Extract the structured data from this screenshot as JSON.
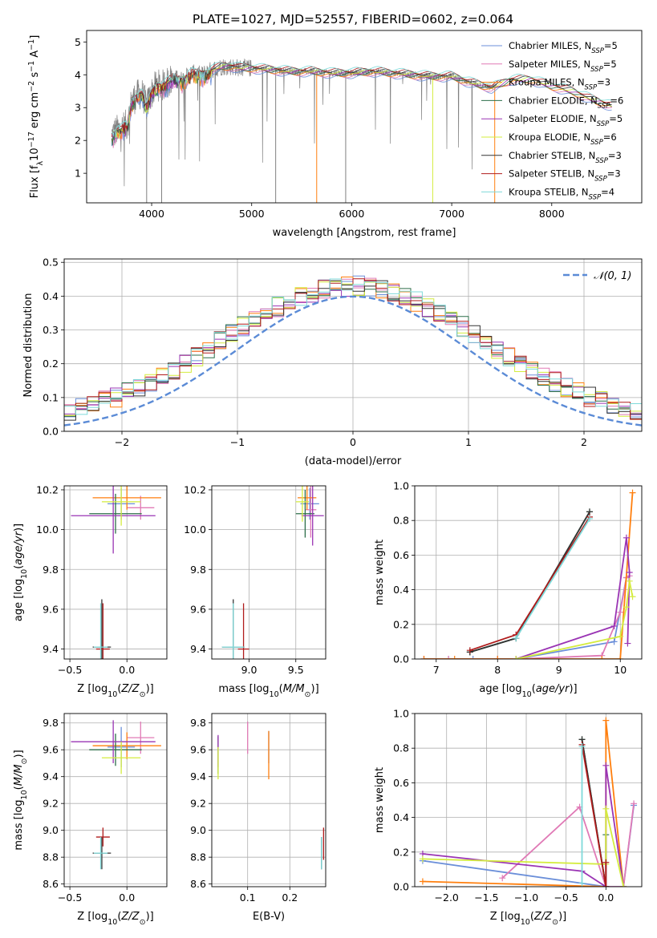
{
  "figure": {
    "title": "PLATE=1027, MJD=52557, FIBERID=0602, z=0.064"
  },
  "colors": {
    "data": "#808080",
    "grid": "#b0b0b0",
    "normal": "#5b8bd6",
    "models": [
      "#6b8fd9",
      "#e07ab6",
      "#ff7f0e",
      "#2c6e49",
      "#9a34b4",
      "#d4ec3e",
      "#333333",
      "#b01c1c",
      "#7fdada"
    ]
  },
  "models": [
    {
      "label": "Chabrier MILES, N",
      "sub": "SSP",
      "suffix": "=5"
    },
    {
      "label": "Salpeter MILES, N",
      "sub": "SSP",
      "suffix": "=5"
    },
    {
      "label": "Kroupa MILES, N",
      "sub": "SSP",
      "suffix": "=3"
    },
    {
      "label": "Chabrier ELODIE, N",
      "sub": "SSP",
      "suffix": "=6"
    },
    {
      "label": "Salpeter ELODIE, N",
      "sub": "SSP",
      "suffix": "=5"
    },
    {
      "label": "Kroupa ELODIE, N",
      "sub": "SSP",
      "suffix": "=6"
    },
    {
      "label": "Chabrier STELIB, N",
      "sub": "SSP",
      "suffix": "=3"
    },
    {
      "label": "Salpeter STELIB, N",
      "sub": "SSP",
      "suffix": "=3"
    },
    {
      "label": "Kroupa STELIB, N",
      "sub": "SSP",
      "suffix": "=4"
    }
  ],
  "chart_data": [
    {
      "id": "spectrum",
      "type": "line",
      "xlabel": "wavelength [Angstrom, rest frame]",
      "ylabel": "Flux [fλ10⁻¹⁷ erg cm⁻² s⁻¹ A⁻¹]",
      "xlim": [
        3350,
        8900
      ],
      "ylim": [
        0.1,
        5.35
      ],
      "xticks": [
        4000,
        5000,
        6000,
        7000,
        8000
      ],
      "yticks": [
        1,
        2,
        3,
        4,
        5
      ],
      "legend": "upper right",
      "continuum": {
        "x": [
          3600,
          3650,
          3700,
          3760,
          3800,
          3850,
          3900,
          3950,
          4000,
          4050,
          4100,
          4200,
          4300,
          4400,
          4500,
          4600,
          4700,
          4800,
          4900,
          5000,
          5200,
          5400,
          5600,
          5800,
          6000,
          6200,
          6400,
          6600,
          6800,
          7000,
          7200,
          7400,
          7600,
          7800,
          8000,
          8200,
          8400,
          8600
        ],
        "y": [
          2.15,
          2.3,
          2.35,
          2.5,
          3.2,
          3.35,
          3.45,
          3.05,
          3.45,
          3.7,
          3.65,
          3.9,
          3.85,
          4.05,
          4.0,
          4.15,
          4.25,
          4.25,
          4.2,
          4.2,
          4.15,
          4.1,
          4.1,
          4.05,
          4.05,
          4.1,
          4.05,
          4.0,
          3.95,
          3.95,
          3.75,
          3.6,
          3.85,
          3.85,
          3.65,
          3.5,
          3.25,
          3.05
        ]
      },
      "data_wavelength_range": [
        3600,
        7450
      ],
      "model_wavelength_range": [
        3600,
        8600
      ]
    },
    {
      "id": "residuals",
      "type": "bar",
      "xlabel": "(data-model)/error",
      "ylabel": "Normed distribution",
      "xlim": [
        -2.5,
        2.5
      ],
      "ylim": [
        0,
        0.51
      ],
      "xticks": [
        -2,
        -1,
        0,
        1,
        2
      ],
      "yticks": [
        0.0,
        0.1,
        0.2,
        0.3,
        0.4,
        0.5
      ],
      "legend": "upper right",
      "normal_label": "𝒩(0, 1)",
      "bin_width": 0.1,
      "note": "histograms of 9 models"
    },
    {
      "id": "age-vs-Z",
      "type": "scatter",
      "xlabel": "Z [log₁₀(Z/Z⊙)]",
      "ylabel": "age  [log₁₀(age/yr)]",
      "xlim": [
        -0.55,
        0.35
      ],
      "ylim": [
        9.35,
        10.22
      ],
      "xticks": [
        -0.5,
        0.0
      ],
      "xticklabels": [
        "−0.5",
        "0.0"
      ],
      "yticks": [
        9.4,
        9.6,
        9.8,
        10.0,
        10.2
      ],
      "points": [
        {
          "model": 0,
          "x": -0.05,
          "y": 10.13,
          "xerr": 0.12,
          "yerr": 0.08
        },
        {
          "model": 1,
          "x": 0.12,
          "y": 10.11,
          "xerr": 0.12,
          "yerr": 0.06
        },
        {
          "model": 2,
          "x": 0.0,
          "y": 10.16,
          "xerr": 0.3,
          "yerr": 0.06
        },
        {
          "model": 3,
          "x": -0.1,
          "y": 10.08,
          "xerr": 0.23,
          "yerr": 0.1
        },
        {
          "model": 4,
          "x": -0.12,
          "y": 10.07,
          "xerr": 0.37,
          "yerr": 0.19
        },
        {
          "model": 5,
          "x": -0.05,
          "y": 10.14,
          "xerr": 0.17,
          "yerr": 0.12
        },
        {
          "model": 6,
          "x": -0.22,
          "y": 9.41,
          "xerr": 0.08,
          "yerr": 0.24
        },
        {
          "model": 7,
          "x": -0.21,
          "y": 9.4,
          "xerr": 0.06,
          "yerr": 0.23
        },
        {
          "model": 8,
          "x": -0.23,
          "y": 9.41,
          "xerr": 0.06,
          "yerr": 0.22
        }
      ]
    },
    {
      "id": "age-vs-mass",
      "type": "scatter",
      "xlabel": "mass [log₁₀(M/M⊙)]",
      "xlim": [
        8.6,
        9.82
      ],
      "ylim": [
        9.35,
        10.22
      ],
      "xticks": [
        9.0,
        9.5
      ],
      "yticks": [
        9.4,
        9.6,
        9.8,
        10.0,
        10.2
      ],
      "points": [
        {
          "model": 0,
          "x": 9.65,
          "y": 10.13,
          "xerr": 0.1,
          "yerr": 0.08
        },
        {
          "model": 1,
          "x": 9.66,
          "y": 10.1,
          "xerr": 0.06,
          "yerr": 0.14
        },
        {
          "model": 2,
          "x": 9.62,
          "y": 10.16,
          "xerr": 0.1,
          "yerr": 0.06
        },
        {
          "model": 3,
          "x": 9.6,
          "y": 10.08,
          "xerr": 0.1,
          "yerr": 0.12
        },
        {
          "model": 4,
          "x": 9.68,
          "y": 10.07,
          "xerr": 0.12,
          "yerr": 0.15
        },
        {
          "model": 5,
          "x": 9.57,
          "y": 10.14,
          "xerr": 0.07,
          "yerr": 0.1
        },
        {
          "model": 6,
          "x": 8.83,
          "y": 9.41,
          "xerr": 0.12,
          "yerr": 0.24
        },
        {
          "model": 7,
          "x": 8.94,
          "y": 9.4,
          "xerr": 0.06,
          "yerr": 0.23
        },
        {
          "model": 8,
          "x": 8.83,
          "y": 9.41,
          "xerr": 0.12,
          "yerr": 0.22
        }
      ]
    },
    {
      "id": "weight-vs-age",
      "type": "line",
      "xlabel": "age  [log₁₀(age/yr)]",
      "ylabel": "mass weight",
      "xlim": [
        6.65,
        10.35
      ],
      "ylim": [
        0.0,
        1.0
      ],
      "xticks": [
        7,
        8,
        9,
        10
      ],
      "yticks": [
        0.0,
        0.2,
        0.4,
        0.6,
        0.8,
        1.0
      ],
      "series": [
        {
          "model": 0,
          "x": [
            6.8,
            7.2,
            7.6,
            8.0,
            8.3,
            9.9,
            10.1
          ],
          "y": [
            0.0,
            0.0,
            0.0,
            0.0,
            0.0,
            0.1,
            0.47
          ]
        },
        {
          "model": 1,
          "x": [
            6.8,
            7.2,
            8.0,
            8.3,
            9.7,
            10.0,
            10.1,
            10.15
          ],
          "y": [
            0.0,
            0.0,
            0.0,
            0.0,
            0.02,
            0.27,
            0.47,
            0.48
          ]
        },
        {
          "model": 2,
          "x": [
            6.8,
            7.3,
            8.0,
            9.7,
            10.0,
            10.2
          ],
          "y": [
            0.0,
            0.0,
            0.0,
            0.0,
            0.0,
            0.96
          ]
        },
        {
          "model": 3,
          "x": [
            7.55,
            8.3,
            9.5
          ],
          "y": [
            0.04,
            0.12,
            0.85
          ]
        },
        {
          "model": 4,
          "x": [
            8.3,
            9.9,
            10.1,
            10.15,
            10.12
          ],
          "y": [
            0.0,
            0.19,
            0.7,
            0.5,
            0.09
          ]
        },
        {
          "model": 5,
          "x": [
            8.3,
            10.0,
            10.1,
            10.15,
            10.2
          ],
          "y": [
            0.0,
            0.13,
            0.3,
            0.45,
            0.36
          ]
        },
        {
          "model": 6,
          "x": [
            7.55,
            8.3,
            9.5
          ],
          "y": [
            0.04,
            0.12,
            0.85
          ]
        },
        {
          "model": 7,
          "x": [
            7.55,
            8.3,
            9.5
          ],
          "y": [
            0.05,
            0.14,
            0.82
          ]
        },
        {
          "model": 8,
          "x": [
            8.3,
            9.5
          ],
          "y": [
            0.12,
            0.81
          ]
        }
      ]
    },
    {
      "id": "mass-vs-Z",
      "type": "scatter",
      "xlabel": "Z [log₁₀(Z/Z⊙)]",
      "ylabel": "mass [log₁₀(M/M⊙)]",
      "xlim": [
        -0.55,
        0.35
      ],
      "ylim": [
        8.58,
        9.87
      ],
      "xticks": [
        -0.5,
        0.0
      ],
      "xticklabels": [
        "−0.5",
        "0.0"
      ],
      "yticks": [
        8.6,
        8.8,
        9.0,
        9.2,
        9.4,
        9.6,
        9.8
      ],
      "points": [
        {
          "model": 0,
          "x": -0.05,
          "y": 9.62,
          "xerr": 0.12,
          "yerr": 0.15
        },
        {
          "model": 1,
          "x": 0.12,
          "y": 9.69,
          "xerr": 0.12,
          "yerr": 0.12
        },
        {
          "model": 2,
          "x": 0.0,
          "y": 9.63,
          "xerr": 0.3,
          "yerr": 0.1
        },
        {
          "model": 3,
          "x": -0.1,
          "y": 9.6,
          "xerr": 0.23,
          "yerr": 0.12
        },
        {
          "model": 4,
          "x": -0.12,
          "y": 9.66,
          "xerr": 0.37,
          "yerr": 0.16
        },
        {
          "model": 5,
          "x": -0.05,
          "y": 9.54,
          "xerr": 0.17,
          "yerr": 0.12
        },
        {
          "model": 6,
          "x": -0.22,
          "y": 8.83,
          "xerr": 0.08,
          "yerr": 0.12
        },
        {
          "model": 7,
          "x": -0.21,
          "y": 8.95,
          "xerr": 0.06,
          "yerr": 0.07
        },
        {
          "model": 8,
          "x": -0.23,
          "y": 8.83,
          "xerr": 0.06,
          "yerr": 0.12
        }
      ]
    },
    {
      "id": "mass-vs-ebv",
      "type": "scatter",
      "xlabel": "E(B-V)",
      "xlim": [
        0.015,
        0.285
      ],
      "ylim": [
        8.58,
        9.87
      ],
      "xticks": [
        0.1,
        0.2
      ],
      "yticks": [
        8.6,
        8.8,
        9.0,
        9.2,
        9.4,
        9.6,
        9.8
      ],
      "points": [
        {
          "model": 0,
          "x": 0.15,
          "y": 9.62,
          "xerr": 0,
          "yerr": 0.12
        },
        {
          "model": 1,
          "x": 0.1,
          "y": 9.69,
          "xerr": 0,
          "yerr": 0.12
        },
        {
          "model": 2,
          "x": 0.15,
          "y": 9.56,
          "xerr": 0,
          "yerr": 0.18
        },
        {
          "model": 3,
          "x": 0.03,
          "y": 9.56,
          "xerr": 0,
          "yerr": 0.14
        },
        {
          "model": 4,
          "x": 0.03,
          "y": 9.59,
          "xerr": 0,
          "yerr": 0.12
        },
        {
          "model": 5,
          "x": 0.03,
          "y": 9.5,
          "xerr": 0,
          "yerr": 0.12
        },
        {
          "model": 6,
          "x": 0.275,
          "y": 8.83,
          "xerr": 0,
          "yerr": 0.12
        },
        {
          "model": 7,
          "x": 0.28,
          "y": 8.9,
          "xerr": 0,
          "yerr": 0.12
        },
        {
          "model": 8,
          "x": 0.275,
          "y": 8.83,
          "xerr": 0,
          "yerr": 0.12
        }
      ]
    },
    {
      "id": "weight-vs-Z",
      "type": "line",
      "xlabel": "Z [log₁₀(Z/Z⊙)]",
      "ylabel": "mass weight",
      "xlim": [
        -2.4,
        0.45
      ],
      "ylim": [
        0.0,
        1.0
      ],
      "xticks": [
        -2.0,
        -1.5,
        -1.0,
        -0.5,
        0.0
      ],
      "xticklabels": [
        "−2.0",
        "−1.5",
        "−1.0",
        "−0.5",
        "0.0"
      ],
      "yticks": [
        0.0,
        0.2,
        0.4,
        0.6,
        0.8,
        1.0
      ],
      "series": [
        {
          "model": 0,
          "x": [
            -2.3,
            0.0,
            0.22,
            0.35
          ],
          "y": [
            0.15,
            0.0,
            0.0,
            0.47
          ]
        },
        {
          "model": 1,
          "x": [
            -1.3,
            -0.33,
            0.0,
            0.22,
            0.35
          ],
          "y": [
            0.05,
            0.46,
            0.0,
            0.0,
            0.48
          ]
        },
        {
          "model": 2,
          "x": [
            -2.3,
            0.0,
            0.0,
            0.22
          ],
          "y": [
            0.03,
            0.0,
            0.96,
            0.0
          ]
        },
        {
          "model": 3,
          "x": [
            -0.3,
            0.0,
            0.0
          ],
          "y": [
            0.85,
            0.0,
            0.3
          ]
        },
        {
          "model": 4,
          "x": [
            -2.3,
            -0.3,
            0.0,
            0.0,
            0.22
          ],
          "y": [
            0.19,
            0.09,
            0.0,
            0.7,
            0.0
          ]
        },
        {
          "model": 5,
          "x": [
            -2.3,
            0.0,
            0.0,
            0.22
          ],
          "y": [
            0.16,
            0.13,
            0.45,
            0.0
          ]
        },
        {
          "model": 6,
          "x": [
            -0.3,
            0.0
          ],
          "y": [
            0.85,
            0.0
          ]
        },
        {
          "model": 7,
          "x": [
            -0.3,
            0.0,
            0.0
          ],
          "y": [
            0.82,
            0.0,
            0.14
          ]
        },
        {
          "model": 8,
          "x": [
            -0.3,
            -0.3
          ],
          "y": [
            0.02,
            0.81
          ]
        }
      ]
    }
  ]
}
